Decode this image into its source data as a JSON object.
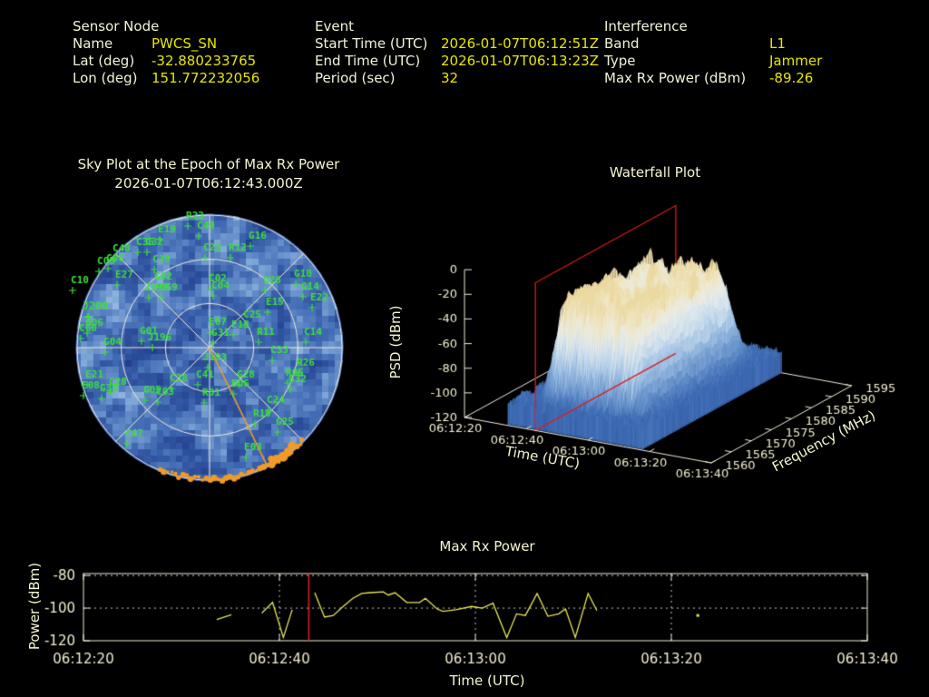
{
  "header": {
    "sensor": {
      "title": "Sensor Node",
      "rows": [
        {
          "label": "Name",
          "value": "PWCS_SN"
        },
        {
          "label": "Lat (deg)",
          "value": "-32.880233765"
        },
        {
          "label": "Lon (deg)",
          "value": "151.772232056"
        }
      ]
    },
    "event": {
      "title": "Event",
      "rows": [
        {
          "label": "Start Time (UTC)",
          "value": "2026-01-07T06:12:51Z"
        },
        {
          "label": "End Time (UTC)",
          "value": "2026-01-07T06:13:23Z"
        },
        {
          "label": "Period (sec)",
          "value": "32"
        }
      ]
    },
    "interference": {
      "title": "Interference",
      "rows": [
        {
          "label": "Band",
          "value": "L1"
        },
        {
          "label": "Type",
          "value": "Jammer"
        },
        {
          "label": "Max Rx Power (dBm)",
          "value": "-89.26"
        }
      ]
    }
  },
  "colors": {
    "label_text": "#f2f2da",
    "value_text": "#e6e600",
    "tick_text": "#f0ecd0",
    "axis_line": "#f0ead8",
    "satellite_green": "#3be03b",
    "track_orange": "#f09a28",
    "epoch_red": "#dd1c1c",
    "series_yellow": "#e8e856"
  },
  "chart_data": [
    {
      "type": "scatter",
      "name": "skyplot",
      "title": "Sky Plot at the Epoch of Max Rx Power",
      "subtitle": "2026-01-07T06:12:43.000Z",
      "projection": "polar-sky",
      "elevation_rings_deg": [
        0,
        30,
        60
      ],
      "azimuth_spokes_deg": [
        0,
        45,
        90,
        135
      ],
      "marker": "+",
      "highlighted_satellite": "J200",
      "satellites": [
        [
          "R23",
          -16,
          -146
        ],
        [
          "C49",
          -4,
          -135
        ],
        [
          "E19",
          -47,
          -131
        ],
        [
          "G16",
          53,
          -124
        ],
        [
          "C40",
          -97,
          -110
        ],
        [
          "C06",
          -104,
          -99
        ],
        [
          "C05",
          -114,
          -96
        ],
        [
          "E27",
          -94,
          -81
        ],
        [
          "C10",
          -143,
          -75
        ],
        [
          "C39",
          -53,
          -98
        ],
        [
          "C36",
          -71,
          -117
        ],
        [
          "C32",
          -61,
          -117
        ],
        [
          "C23",
          3,
          -111
        ],
        [
          "R12",
          31,
          -111
        ],
        [
          "C02",
          9,
          -77
        ],
        [
          "C04",
          12,
          -69
        ],
        [
          "G02",
          -51,
          -79
        ],
        [
          "J199",
          -59,
          -67
        ],
        [
          "C59",
          -45,
          -67
        ],
        [
          "G26",
          69,
          -75
        ],
        [
          "G10",
          103,
          -82
        ],
        [
          "G14",
          111,
          -68
        ],
        [
          "E22",
          121,
          -56
        ],
        [
          "E15",
          72,
          -51
        ],
        [
          "C25",
          47,
          -37
        ],
        [
          "E07",
          9,
          -29
        ],
        [
          "E13",
          34,
          -26
        ],
        [
          "G31",
          12,
          -17
        ],
        [
          "R11",
          62,
          -18
        ],
        [
          "C14",
          114,
          -18
        ],
        [
          "C33",
          77,
          2
        ],
        [
          "J193",
          6,
          10
        ],
        [
          "R26",
          106,
          16
        ],
        [
          "R05",
          94,
          27
        ],
        [
          "G32",
          97,
          34
        ],
        [
          "G28",
          40,
          29
        ],
        [
          "E06",
          34,
          39
        ],
        [
          "R01",
          2,
          49
        ],
        [
          "C41",
          -5,
          29
        ],
        [
          "C24",
          73,
          57
        ],
        [
          "R10",
          58,
          72
        ],
        [
          "G25",
          83,
          81
        ],
        [
          "E03",
          48,
          109
        ],
        [
          "C47",
          -83,
          94
        ],
        [
          "E21",
          -127,
          29
        ],
        [
          "E08",
          -131,
          41
        ],
        [
          "G30",
          -111,
          44
        ],
        [
          "C28",
          -101,
          37
        ],
        [
          "C38",
          -34,
          33
        ],
        [
          "G05",
          -63,
          46
        ],
        [
          "C03",
          -49,
          48
        ],
        [
          "J196",
          -55,
          -12
        ],
        [
          "G01",
          -67,
          -19
        ],
        [
          "G04",
          -107,
          -7
        ],
        [
          "C60",
          -134,
          -22
        ],
        [
          "G06",
          -127,
          -28
        ],
        [
          "J200",
          -126,
          -46
        ]
      ],
      "interference_bearing": {
        "screen_angle_deg": 64,
        "length_frac": 0.98
      },
      "track_arc_screen_deg": [
        45,
        112
      ]
    },
    {
      "type": "surface",
      "name": "waterfall",
      "title": "Waterfall Plot",
      "xlabel": "Time (UTC)",
      "ylabel": "Frequency (MHz)",
      "zlabel": "PSD (dBm)",
      "time_ticks": [
        "06:12:20",
        "06:12:40",
        "06:13:00",
        "06:13:20",
        "06:13:40"
      ],
      "time_tick_s": [
        0,
        20,
        40,
        60,
        80
      ],
      "freq_ticks": [
        1560,
        1565,
        1570,
        1575,
        1580,
        1585,
        1590,
        1595
      ],
      "psd_ticks": [
        0,
        -20,
        -40,
        -60,
        -80,
        -100,
        -120
      ],
      "freq_range_mhz": [
        1560,
        1595
      ],
      "psd_range_dbm": [
        -120,
        0
      ],
      "signal": {
        "time_span_s": [
          18,
          55
        ],
        "freq_span_mhz": [
          1566,
          1589
        ],
        "peak_psd_dbm": -20,
        "noise_floor_dbm": -102
      },
      "epoch_plane": {
        "time": "06:12:43",
        "t_s": 23
      }
    },
    {
      "type": "line",
      "name": "max_rx_power",
      "title": "Max Rx Power",
      "xlabel": "Time (UTC)",
      "ylabel": "Power (dBm)",
      "x_ticks": [
        "06:12:20",
        "06:12:40",
        "06:13:00",
        "06:13:20",
        "06:13:40"
      ],
      "x_tick_s": [
        0,
        20,
        40,
        60,
        80
      ],
      "y_ticks": [
        -80,
        -100,
        -120
      ],
      "ylim": [
        -120,
        -78.8
      ],
      "xlim_s": [
        0,
        80
      ],
      "grid_x_s": [
        20,
        40,
        60
      ],
      "grid_y": [
        -80,
        -100
      ],
      "epoch_line": {
        "time": "06:12:43",
        "t_s": 23
      },
      "segments": [
        [
          [
            13.6,
            -107
          ],
          [
            15.1,
            -104
          ]
        ],
        [
          [
            18.2,
            -103
          ],
          [
            19.3,
            -96.5
          ],
          [
            20.4,
            -118
          ],
          [
            21.3,
            -101
          ]
        ],
        [
          [
            23.6,
            -90.5
          ],
          [
            24.6,
            -105.5
          ],
          [
            25.5,
            -104.5
          ],
          [
            26.5,
            -99
          ],
          [
            27.5,
            -94
          ],
          [
            28.4,
            -91
          ],
          [
            29.3,
            -90.5
          ],
          [
            30.6,
            -90
          ],
          [
            31.1,
            -92
          ],
          [
            31.8,
            -90.5
          ],
          [
            33,
            -96.5
          ],
          [
            34.3,
            -96.5
          ],
          [
            34.9,
            -94
          ],
          [
            36.1,
            -100.5
          ],
          [
            36.7,
            -102
          ],
          [
            38,
            -101
          ],
          [
            39.6,
            -99
          ],
          [
            40.7,
            -100
          ],
          [
            41.8,
            -97
          ],
          [
            43.2,
            -118
          ],
          [
            44.2,
            -103.5
          ],
          [
            45.1,
            -104.5
          ],
          [
            46.3,
            -91
          ],
          [
            47.4,
            -105
          ],
          [
            48.5,
            -103.5
          ],
          [
            49.2,
            -100.5
          ],
          [
            50.2,
            -118
          ],
          [
            51.5,
            -91
          ],
          [
            52.4,
            -101.5
          ]
        ]
      ],
      "isolated_points": [
        [
          62.7,
          -104.5
        ]
      ]
    }
  ]
}
